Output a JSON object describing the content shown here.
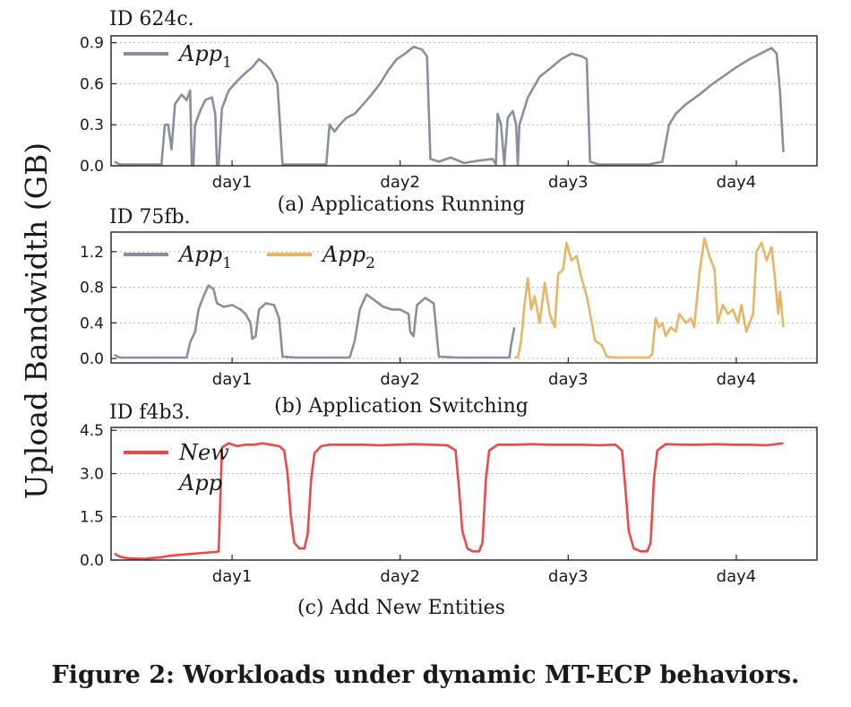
{
  "figure": {
    "ylabel": "Upload Bandwidth (GB)",
    "caption": "Figure 2: Workloads under dynamic MT-ECP behaviors."
  },
  "colors": {
    "app1": "#8a8fa0",
    "app2": "#e6b565",
    "newapp": "#f04848",
    "grid": "#b5b5b5"
  },
  "chart_data": [
    {
      "type": "line",
      "id_label": "ID 624c.",
      "subtitle": "(a) Applications Running",
      "ylim": [
        0,
        0.95
      ],
      "yticks": [
        "0.0",
        "0.3",
        "0.6",
        "0.9"
      ],
      "ytick_values": [
        0,
        0.3,
        0.6,
        0.9
      ],
      "xlim": [
        0,
        4.2
      ],
      "xticks": [
        "day1",
        "day2",
        "day3",
        "day4"
      ],
      "xtick_values": [
        0.72,
        1.72,
        2.72,
        3.72
      ],
      "legend": [
        {
          "name": "App",
          "sub": "1",
          "color_key": "app1"
        }
      ],
      "series": [
        {
          "name": "App1",
          "color_key": "app1",
          "points": [
            [
              0.02,
              0.03
            ],
            [
              0.05,
              0.01
            ],
            [
              0.3,
              0.01
            ],
            [
              0.32,
              0.3
            ],
            [
              0.34,
              0.3
            ],
            [
              0.36,
              0.12
            ],
            [
              0.38,
              0.45
            ],
            [
              0.42,
              0.52
            ],
            [
              0.45,
              0.48
            ],
            [
              0.47,
              0.55
            ],
            [
              0.48,
              0.01
            ],
            [
              0.49,
              0.01
            ],
            [
              0.5,
              0.3
            ],
            [
              0.53,
              0.4
            ],
            [
              0.56,
              0.48
            ],
            [
              0.6,
              0.5
            ],
            [
              0.62,
              0.38
            ],
            [
              0.63,
              0.01
            ],
            [
              0.64,
              0.01
            ],
            [
              0.66,
              0.42
            ],
            [
              0.7,
              0.55
            ],
            [
              0.75,
              0.62
            ],
            [
              0.8,
              0.68
            ],
            [
              0.84,
              0.72
            ],
            [
              0.88,
              0.78
            ],
            [
              0.92,
              0.74
            ],
            [
              0.95,
              0.7
            ],
            [
              0.99,
              0.6
            ],
            [
              1.02,
              0.01
            ],
            [
              1.28,
              0.01
            ],
            [
              1.3,
              0.3
            ],
            [
              1.33,
              0.25
            ],
            [
              1.36,
              0.3
            ],
            [
              1.4,
              0.35
            ],
            [
              1.45,
              0.38
            ],
            [
              1.5,
              0.45
            ],
            [
              1.55,
              0.52
            ],
            [
              1.6,
              0.6
            ],
            [
              1.65,
              0.7
            ],
            [
              1.7,
              0.78
            ],
            [
              1.75,
              0.82
            ],
            [
              1.8,
              0.87
            ],
            [
              1.85,
              0.85
            ],
            [
              1.88,
              0.8
            ],
            [
              1.9,
              0.05
            ],
            [
              1.95,
              0.03
            ],
            [
              2.02,
              0.06
            ],
            [
              2.1,
              0.02
            ],
            [
              2.2,
              0.04
            ],
            [
              2.27,
              0.05
            ],
            [
              2.29,
              0.01
            ],
            [
              2.3,
              0.38
            ],
            [
              2.32,
              0.3
            ],
            [
              2.34,
              0.01
            ],
            [
              2.36,
              0.35
            ],
            [
              2.39,
              0.4
            ],
            [
              2.41,
              0.3
            ],
            [
              2.42,
              0.01
            ],
            [
              2.43,
              0.3
            ],
            [
              2.48,
              0.5
            ],
            [
              2.55,
              0.65
            ],
            [
              2.62,
              0.72
            ],
            [
              2.68,
              0.78
            ],
            [
              2.74,
              0.82
            ],
            [
              2.8,
              0.8
            ],
            [
              2.83,
              0.78
            ],
            [
              2.85,
              0.03
            ],
            [
              2.9,
              0.01
            ],
            [
              3.2,
              0.01
            ],
            [
              3.28,
              0.03
            ],
            [
              3.32,
              0.3
            ],
            [
              3.36,
              0.38
            ],
            [
              3.42,
              0.45
            ],
            [
              3.5,
              0.52
            ],
            [
              3.58,
              0.6
            ],
            [
              3.65,
              0.66
            ],
            [
              3.72,
              0.72
            ],
            [
              3.8,
              0.78
            ],
            [
              3.88,
              0.83
            ],
            [
              3.93,
              0.86
            ],
            [
              3.96,
              0.82
            ],
            [
              3.98,
              0.55
            ],
            [
              4.0,
              0.1
            ]
          ]
        }
      ]
    },
    {
      "type": "line",
      "id_label": "ID 75fb.",
      "subtitle": "(b) Application Switching",
      "ylim": [
        -0.05,
        1.42
      ],
      "yticks": [
        "0.0",
        "0.4",
        "0.8",
        "1.2"
      ],
      "ytick_values": [
        0,
        0.4,
        0.8,
        1.2
      ],
      "xlim": [
        0,
        4.2
      ],
      "xticks": [
        "day1",
        "day2",
        "day3",
        "day4"
      ],
      "xtick_values": [
        0.72,
        1.72,
        2.72,
        3.72
      ],
      "legend": [
        {
          "name": "App",
          "sub": "1",
          "color_key": "app1"
        },
        {
          "name": "App",
          "sub": "2",
          "color_key": "app2"
        }
      ],
      "series": [
        {
          "name": "App1",
          "color_key": "app1",
          "points": [
            [
              0.02,
              0.04
            ],
            [
              0.05,
              0.01
            ],
            [
              0.45,
              0.01
            ],
            [
              0.47,
              0.18
            ],
            [
              0.5,
              0.3
            ],
            [
              0.52,
              0.55
            ],
            [
              0.55,
              0.7
            ],
            [
              0.58,
              0.82
            ],
            [
              0.61,
              0.78
            ],
            [
              0.63,
              0.62
            ],
            [
              0.67,
              0.58
            ],
            [
              0.72,
              0.6
            ],
            [
              0.77,
              0.55
            ],
            [
              0.8,
              0.5
            ],
            [
              0.83,
              0.4
            ],
            [
              0.84,
              0.22
            ],
            [
              0.86,
              0.25
            ],
            [
              0.88,
              0.55
            ],
            [
              0.92,
              0.62
            ],
            [
              0.97,
              0.6
            ],
            [
              1.0,
              0.45
            ],
            [
              1.02,
              0.02
            ],
            [
              1.1,
              0.01
            ],
            [
              1.42,
              0.01
            ],
            [
              1.45,
              0.2
            ],
            [
              1.48,
              0.55
            ],
            [
              1.52,
              0.72
            ],
            [
              1.57,
              0.65
            ],
            [
              1.62,
              0.58
            ],
            [
              1.67,
              0.55
            ],
            [
              1.72,
              0.55
            ],
            [
              1.77,
              0.5
            ],
            [
              1.78,
              0.3
            ],
            [
              1.8,
              0.25
            ],
            [
              1.82,
              0.6
            ],
            [
              1.87,
              0.68
            ],
            [
              1.92,
              0.62
            ],
            [
              1.95,
              0.02
            ],
            [
              2.05,
              0.01
            ],
            [
              2.37,
              0.01
            ],
            [
              2.38,
              0.15
            ],
            [
              2.4,
              0.35
            ]
          ]
        },
        {
          "name": "App2",
          "color_key": "app2",
          "points": [
            [
              2.4,
              0.01
            ],
            [
              2.42,
              0.01
            ],
            [
              2.44,
              0.2
            ],
            [
              2.46,
              0.6
            ],
            [
              2.48,
              0.9
            ],
            [
              2.5,
              0.55
            ],
            [
              2.52,
              0.7
            ],
            [
              2.55,
              0.4
            ],
            [
              2.58,
              0.85
            ],
            [
              2.61,
              0.5
            ],
            [
              2.64,
              0.35
            ],
            [
              2.66,
              0.95
            ],
            [
              2.69,
              1.0
            ],
            [
              2.71,
              1.3
            ],
            [
              2.74,
              1.1
            ],
            [
              2.77,
              1.15
            ],
            [
              2.8,
              0.9
            ],
            [
              2.83,
              0.7
            ],
            [
              2.86,
              0.4
            ],
            [
              2.88,
              0.2
            ],
            [
              2.92,
              0.15
            ],
            [
              2.95,
              0.02
            ],
            [
              3.0,
              0.01
            ],
            [
              3.2,
              0.01
            ],
            [
              3.22,
              0.05
            ],
            [
              3.24,
              0.45
            ],
            [
              3.26,
              0.35
            ],
            [
              3.28,
              0.4
            ],
            [
              3.3,
              0.25
            ],
            [
              3.33,
              0.35
            ],
            [
              3.36,
              0.3
            ],
            [
              3.38,
              0.5
            ],
            [
              3.42,
              0.4
            ],
            [
              3.45,
              0.45
            ],
            [
              3.47,
              0.35
            ],
            [
              3.5,
              0.95
            ],
            [
              3.53,
              1.35
            ],
            [
              3.56,
              1.15
            ],
            [
              3.59,
              1.0
            ],
            [
              3.61,
              0.4
            ],
            [
              3.64,
              0.6
            ],
            [
              3.67,
              0.5
            ],
            [
              3.7,
              0.55
            ],
            [
              3.73,
              0.4
            ],
            [
              3.75,
              0.6
            ],
            [
              3.78,
              0.3
            ],
            [
              3.82,
              0.5
            ],
            [
              3.84,
              1.2
            ],
            [
              3.87,
              1.3
            ],
            [
              3.9,
              1.1
            ],
            [
              3.93,
              1.25
            ],
            [
              3.95,
              0.9
            ],
            [
              3.97,
              0.5
            ],
            [
              3.98,
              0.75
            ],
            [
              4.0,
              0.35
            ]
          ]
        }
      ]
    },
    {
      "type": "line",
      "id_label": "ID f4b3.",
      "subtitle": "(c) Add New Entities",
      "ylim": [
        0,
        4.6
      ],
      "yticks": [
        "0.0",
        "1.5",
        "3.0",
        "4.5"
      ],
      "ytick_values": [
        0,
        1.5,
        3.0,
        4.5
      ],
      "xlim": [
        0,
        4.2
      ],
      "xticks": [
        "day1",
        "day2",
        "day3",
        "day4"
      ],
      "xtick_values": [
        0.72,
        1.72,
        2.72,
        3.72
      ],
      "legend": [
        {
          "name": "New",
          "name2": "App",
          "color_key": "newapp"
        }
      ],
      "series": [
        {
          "name": "New App",
          "color_key": "newapp",
          "points": [
            [
              0.02,
              0.22
            ],
            [
              0.05,
              0.12
            ],
            [
              0.1,
              0.06
            ],
            [
              0.2,
              0.04
            ],
            [
              0.3,
              0.1
            ],
            [
              0.35,
              0.15
            ],
            [
              0.45,
              0.2
            ],
            [
              0.55,
              0.25
            ],
            [
              0.62,
              0.28
            ],
            [
              0.64,
              0.3
            ],
            [
              0.66,
              3.9
            ],
            [
              0.7,
              4.05
            ],
            [
              0.75,
              3.95
            ],
            [
              0.8,
              4.0
            ],
            [
              0.85,
              4.0
            ],
            [
              0.9,
              4.05
            ],
            [
              0.95,
              4.0
            ],
            [
              1.0,
              3.95
            ],
            [
              1.03,
              3.8
            ],
            [
              1.05,
              3.0
            ],
            [
              1.07,
              1.5
            ],
            [
              1.09,
              0.6
            ],
            [
              1.12,
              0.4
            ],
            [
              1.15,
              0.4
            ],
            [
              1.17,
              0.9
            ],
            [
              1.19,
              2.8
            ],
            [
              1.21,
              3.7
            ],
            [
              1.25,
              3.95
            ],
            [
              1.3,
              4.0
            ],
            [
              1.4,
              4.0
            ],
            [
              1.5,
              4.0
            ],
            [
              1.6,
              3.98
            ],
            [
              1.7,
              4.0
            ],
            [
              1.8,
              4.02
            ],
            [
              1.9,
              4.0
            ],
            [
              2.0,
              3.98
            ],
            [
              2.05,
              3.8
            ],
            [
              2.07,
              2.5
            ],
            [
              2.09,
              1.0
            ],
            [
              2.12,
              0.4
            ],
            [
              2.15,
              0.3
            ],
            [
              2.19,
              0.3
            ],
            [
              2.21,
              0.6
            ],
            [
              2.23,
              2.8
            ],
            [
              2.25,
              3.8
            ],
            [
              2.3,
              4.0
            ],
            [
              2.4,
              4.0
            ],
            [
              2.5,
              4.02
            ],
            [
              2.6,
              4.0
            ],
            [
              2.7,
              4.0
            ],
            [
              2.8,
              4.0
            ],
            [
              2.9,
              3.98
            ],
            [
              3.0,
              4.0
            ],
            [
              3.04,
              3.8
            ],
            [
              3.06,
              2.5
            ],
            [
              3.08,
              1.0
            ],
            [
              3.11,
              0.4
            ],
            [
              3.15,
              0.3
            ],
            [
              3.19,
              0.3
            ],
            [
              3.21,
              0.6
            ],
            [
              3.23,
              2.8
            ],
            [
              3.25,
              3.8
            ],
            [
              3.3,
              4.02
            ],
            [
              3.4,
              4.0
            ],
            [
              3.5,
              4.0
            ],
            [
              3.6,
              4.02
            ],
            [
              3.7,
              4.0
            ],
            [
              3.8,
              4.0
            ],
            [
              3.9,
              3.98
            ],
            [
              4.0,
              4.05
            ]
          ]
        }
      ]
    }
  ]
}
